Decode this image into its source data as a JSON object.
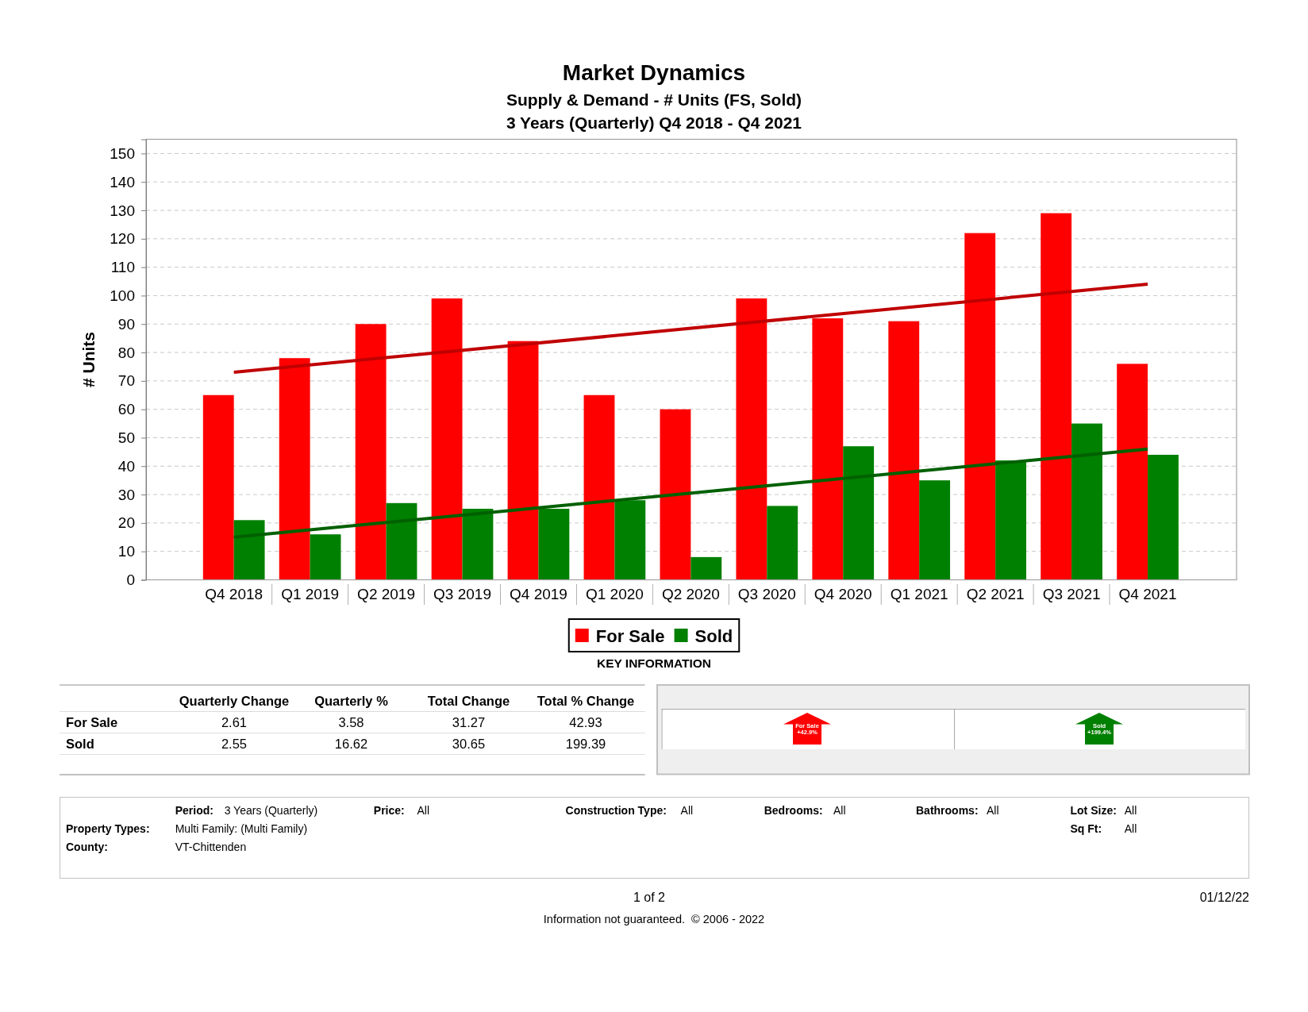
{
  "chart_data": {
    "type": "bar",
    "title": "Market Dynamics",
    "subtitle": "Supply & Demand - # Units (FS, Sold)\n3 Years (Quarterly) Q4 2018 - Q4 2021",
    "ylabel": "# Units",
    "categories": [
      "Q4 2018",
      "Q1 2019",
      "Q2 2019",
      "Q3 2019",
      "Q4 2019",
      "Q1 2020",
      "Q2 2020",
      "Q3 2020",
      "Q4 2020",
      "Q1 2021",
      "Q2 2021",
      "Q3 2021",
      "Q4 2021"
    ],
    "series": [
      {
        "name": "For Sale",
        "color": "#ff0000",
        "values": [
          65,
          78,
          90,
          99,
          84,
          65,
          60,
          99,
          92,
          91,
          122,
          129,
          76
        ]
      },
      {
        "name": "Sold",
        "color": "#008000",
        "values": [
          21,
          16,
          27,
          25,
          25,
          28,
          8,
          26,
          47,
          35,
          42,
          55,
          44
        ]
      },
      {
        "type": "line",
        "color": "#c00000",
        "x": [
          "Q4 2018",
          "Q4 2021"
        ],
        "values": [
          73,
          104
        ]
      },
      {
        "type": "line",
        "color": "#006000",
        "x": [
          "Q4 2018",
          "Q4 2021"
        ],
        "values": [
          15,
          46
        ]
      }
    ],
    "ylim": [
      0,
      155
    ],
    "yticks": [
      0,
      10,
      20,
      30,
      40,
      50,
      60,
      70,
      80,
      90,
      100,
      110,
      120,
      130,
      140,
      150
    ],
    "grid": "y",
    "legend": "bottom",
    "annotations": [
      "KEY INFORMATION",
      "Quarterly Change",
      "Quarterly %",
      "Total Change",
      "Total % Change",
      "For Sale",
      "2.61",
      "3.58",
      "31.27",
      "42.93",
      "Sold",
      "2.55",
      "16.62",
      "30.65",
      "199.39",
      "For Sale",
      "+42.9%",
      "Sold",
      "+199.4%",
      "Period:",
      "3 Years (Quarterly)",
      "Price:",
      "All",
      "Construction Type:",
      "All",
      "Bedrooms:",
      "All",
      "Bathrooms:",
      "All",
      "Lot Size:",
      "All",
      "Property Types:",
      "Multi Family: (Multi Family)",
      "Sq Ft:",
      "All",
      "County:",
      "VT-Chittenden",
      "1 of 2",
      "01/12/22",
      "Information not guaranteed.  © 2006 - 2022"
    ]
  }
}
